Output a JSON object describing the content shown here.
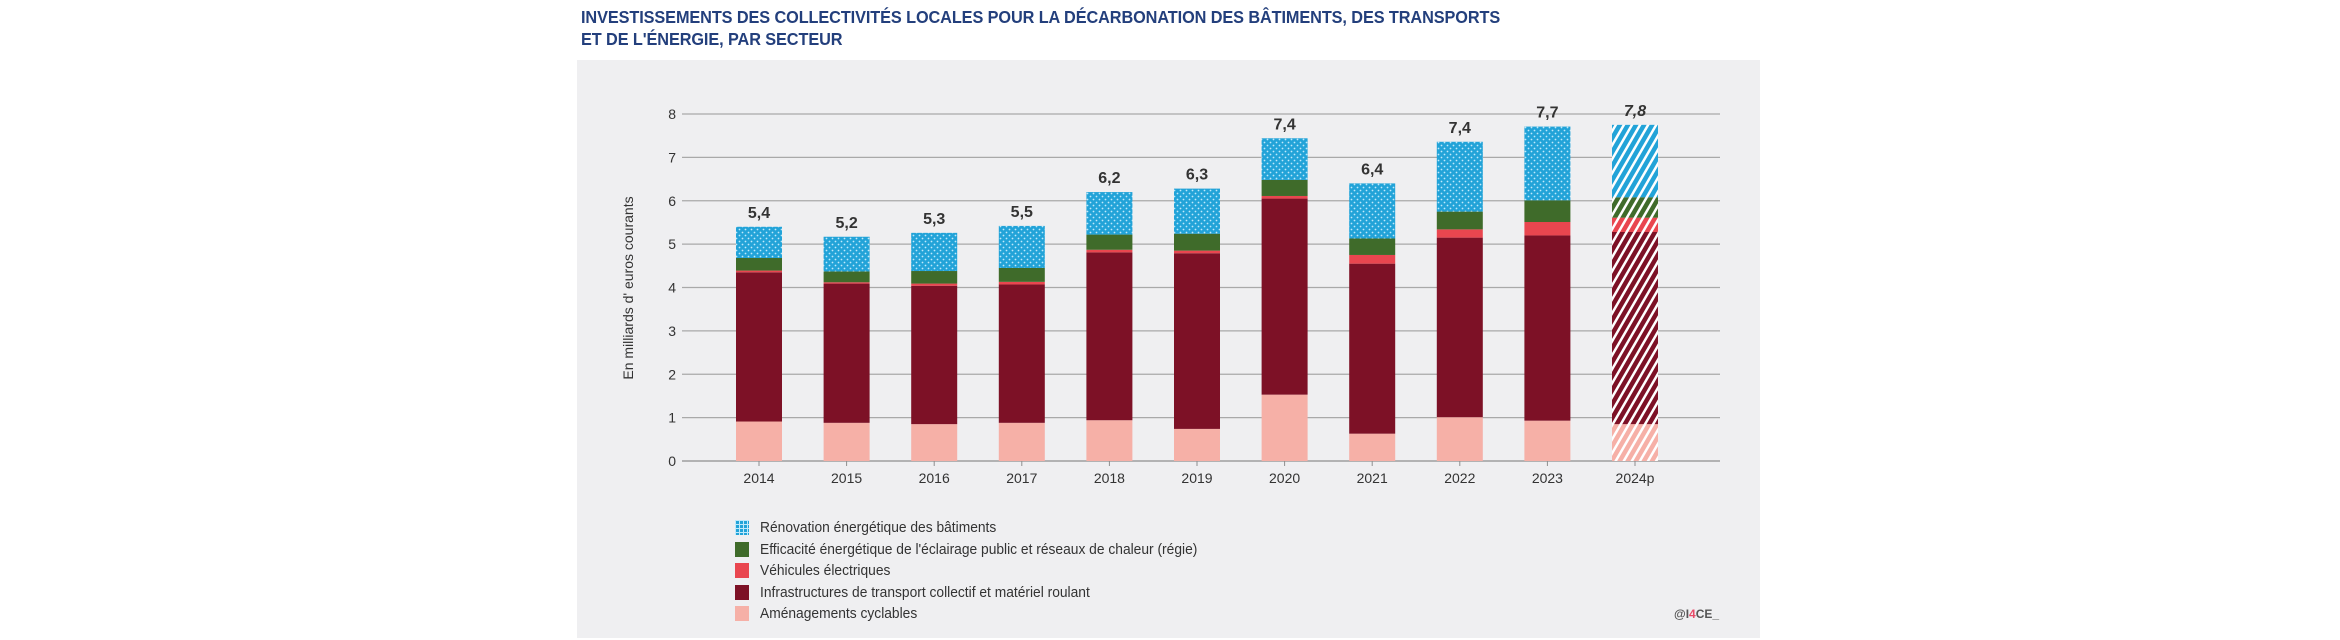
{
  "title_line1": "INVESTISSEMENTS DES COLLECTIVITÉS LOCALES POUR LA DÉCARBONATION DES BÂTIMENTS, DES TRANSPORTS",
  "title_line2": "ET DE L'ÉNERGIE, PAR SECTEUR",
  "credit_prefix": "@I",
  "credit_accent": "4",
  "credit_suffix": "CE_",
  "chart_data": {
    "type": "bar",
    "stacked": true,
    "title": "INVESTISSEMENTS DES COLLECTIVITÉS LOCALES POUR LA DÉCARBONATION DES BÂTIMENTS, DES TRANSPORTS ET DE L'ÉNERGIE, PAR SECTEUR",
    "xlabel": "",
    "ylabel": "En milliards d' euros courants",
    "ylim": [
      0,
      8
    ],
    "yticks": [
      "0",
      "1",
      "2",
      "3",
      "4",
      "5",
      "6",
      "7",
      "8"
    ],
    "grid": true,
    "legend_position": "bottom-left",
    "categories": [
      "2014",
      "2015",
      "2016",
      "2017",
      "2018",
      "2019",
      "2020",
      "2021",
      "2022",
      "2023",
      "2024p"
    ],
    "projected_categories": [
      "2024p"
    ],
    "totals_labels": [
      "5,4",
      "5,2",
      "5,3",
      "5,5",
      "6,2",
      "6,3",
      "7,4",
      "6,4",
      "7,4",
      "7,7",
      "7,8"
    ],
    "series": [
      {
        "name": "Aménagements cyclables",
        "color": "#f6b0a7",
        "pattern": "solid",
        "values": [
          0.91,
          0.88,
          0.85,
          0.88,
          0.94,
          0.74,
          1.53,
          0.63,
          1.01,
          0.93,
          0.85
        ]
      },
      {
        "name": "Infrastructures de transport collectif et matériel roulant",
        "color": "#7d1126",
        "pattern": "solid",
        "values": [
          3.44,
          3.21,
          3.19,
          3.19,
          3.87,
          4.05,
          4.52,
          3.92,
          4.14,
          4.27,
          4.43
        ]
      },
      {
        "name": "Véhicules électriques",
        "color": "#e9464f",
        "pattern": "solid",
        "values": [
          0.04,
          0.03,
          0.05,
          0.06,
          0.06,
          0.06,
          0.06,
          0.2,
          0.19,
          0.31,
          0.33
        ]
      },
      {
        "name": "Efficacité énergétique de l'éclairage public et réseaux de chaleur (régie)",
        "color": "#3f6b2a",
        "pattern": "solid",
        "values": [
          0.29,
          0.25,
          0.29,
          0.32,
          0.35,
          0.39,
          0.37,
          0.38,
          0.41,
          0.5,
          0.47
        ]
      },
      {
        "name": "Rénovation énergétique des bâtiments",
        "color": "#22a3d8",
        "pattern": "dots",
        "values": [
          0.72,
          0.8,
          0.88,
          0.97,
          0.98,
          1.04,
          0.96,
          1.27,
          1.61,
          1.7,
          1.67
        ]
      }
    ],
    "legend_order": [
      4,
      3,
      2,
      1,
      0
    ]
  }
}
